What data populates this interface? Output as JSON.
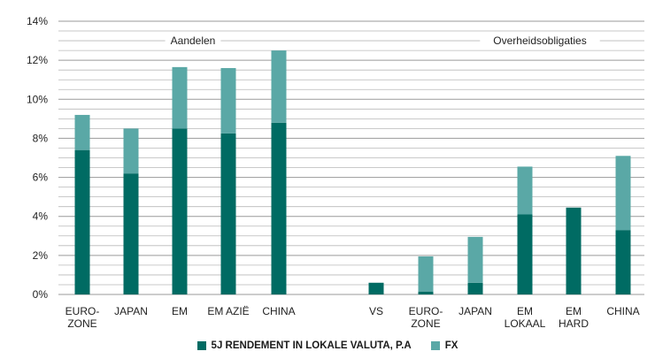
{
  "chart_data": {
    "type": "bar",
    "stacked": true,
    "groups": [
      {
        "label": "Aandelen",
        "categories": [
          "EURO-\nZONE",
          "JAPAN",
          "EM",
          "EM AZIË",
          "CHINA"
        ]
      },
      {
        "label": "Overheidsobligaties",
        "categories": [
          "VS",
          "EURO-\nZONE",
          "JAPAN",
          "EM\nLOKAAL",
          "EM\nHARD",
          "CHINA"
        ]
      }
    ],
    "categories": [
      "EURO-\nZONE",
      "JAPAN",
      "EM",
      "EM AZIË",
      "CHINA",
      "VS",
      "EURO-\nZONE",
      "JAPAN",
      "EM\nLOKAAL",
      "EM\nHARD",
      "CHINA"
    ],
    "series": [
      {
        "name": "5J RENDEMENT IN LOKALE VALUTA, P.A",
        "color": "#006b63",
        "values": [
          7.4,
          6.2,
          8.5,
          8.25,
          8.8,
          0.6,
          0.15,
          0.6,
          4.1,
          4.45,
          3.3
        ]
      },
      {
        "name": "FX",
        "color": "#5aa8a6",
        "values": [
          1.8,
          2.3,
          3.15,
          3.35,
          3.7,
          0.0,
          1.8,
          2.35,
          2.45,
          0.0,
          3.8
        ]
      }
    ],
    "ylim": [
      0,
      14
    ],
    "yticks": [
      "0%",
      "2%",
      "4%",
      "6%",
      "8%",
      "10%",
      "12%",
      "14%"
    ],
    "ytick_values": [
      0,
      2,
      4,
      6,
      8,
      10,
      12,
      14
    ],
    "minor_grid_step": 0.5,
    "grid": true,
    "legend_position": "bottom-center",
    "title": "",
    "xlabel": "",
    "ylabel": ""
  }
}
